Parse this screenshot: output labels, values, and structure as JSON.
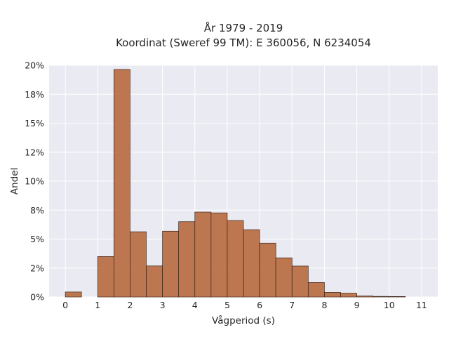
{
  "chart_data": {
    "type": "bar",
    "title_lines": [
      "År 1979 - 2019",
      "Koordinat (Sweref 99 TM): E 360056, N 6234054"
    ],
    "xlabel": "Vågperiod (s)",
    "ylabel": "Andel",
    "x_ticks": [
      "0",
      "1",
      "2",
      "3",
      "4",
      "5",
      "6",
      "7",
      "8",
      "9",
      "10",
      "11"
    ],
    "y_ticks": [
      "0%",
      "2%",
      "5%",
      "8%",
      "10%",
      "12%",
      "15%",
      "18%",
      "20%"
    ],
    "xlim": [
      -0.5,
      11.5
    ],
    "ylim": [
      0,
      0.2
    ],
    "grid": true,
    "bin_width": 0.5,
    "bins_start": [
      0,
      0.5,
      1,
      1.5,
      2,
      2.5,
      3,
      3.5,
      4,
      4.5,
      5,
      5.5,
      6,
      6.5,
      7,
      7.5,
      8,
      8.5,
      9,
      9.5,
      10
    ],
    "values": [
      0.0043,
      0,
      0.0349,
      0.1964,
      0.0563,
      0.0268,
      0.0568,
      0.065,
      0.0733,
      0.0726,
      0.066,
      0.0581,
      0.0465,
      0.0338,
      0.0267,
      0.0125,
      0.004,
      0.0033,
      0.0009,
      0.0005,
      0.0004
    ],
    "colors": {
      "bar": "#b86a3e",
      "bar_edge": "#3a2418",
      "plot_bg": "#eaeaf2",
      "grid": "#ffffff"
    }
  }
}
